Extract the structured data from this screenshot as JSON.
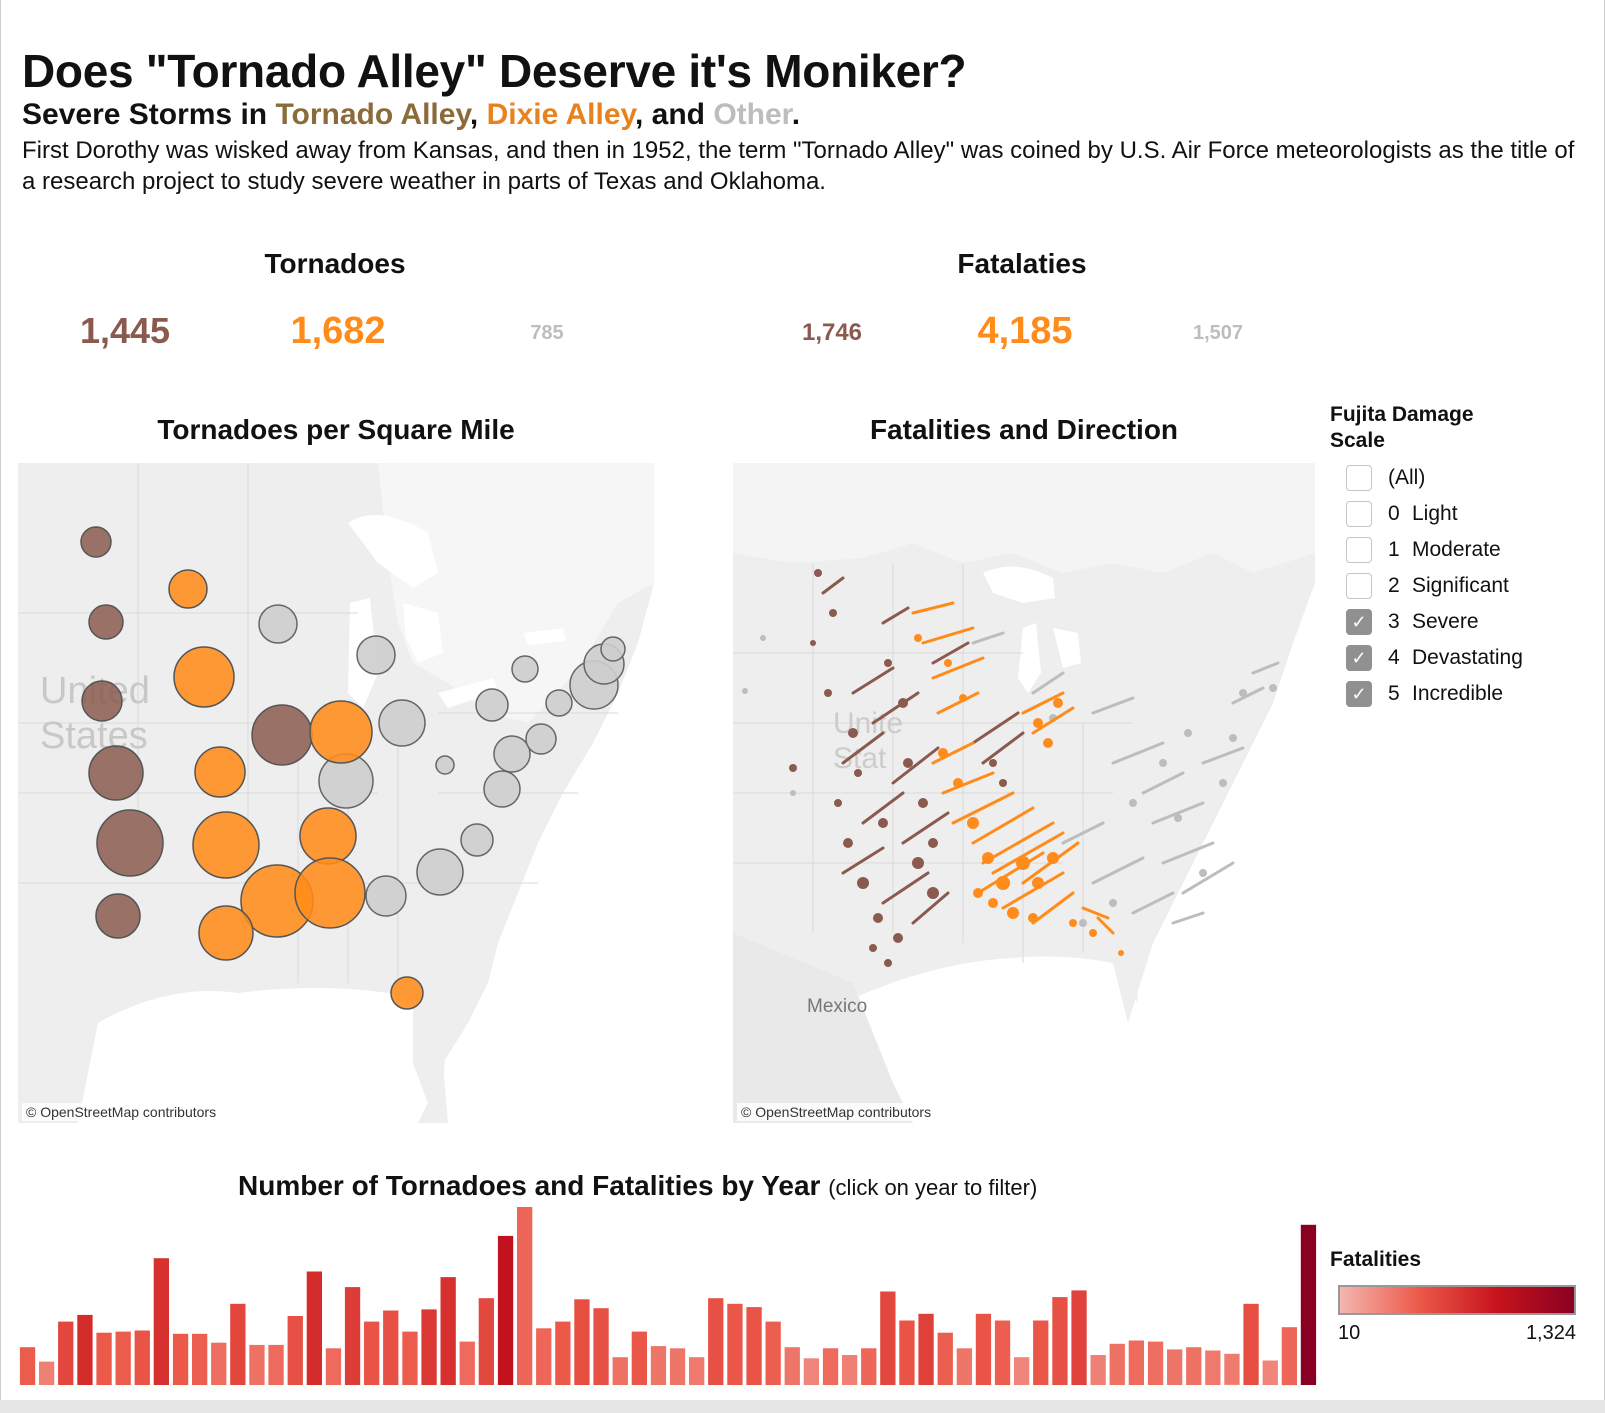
{
  "header": {
    "title": "Does \"Tornado Alley\" Deserve it's Moniker?",
    "subtitle_prefix": "Severe Storms in ",
    "subtitle_region1": "Tornado Alley",
    "subtitle_sep1": ", ",
    "subtitle_region2": "Dixie Alley",
    "subtitle_sep2": ", and ",
    "subtitle_region3": "Other",
    "subtitle_end": ".",
    "intro": "First Dorothy was wisked away from Kansas, and then in 1952, the term \"Tornado Alley\" was coined by U.S. Air Force meteorologists as the title of a research project to study severe weather in parts of Texas and Oklahoma."
  },
  "colors": {
    "tornado_alley": "#8B5A4F",
    "dixie_alley": "#FF8C1A",
    "other": "#BFBFBF",
    "alley_title": "#8B6B3A",
    "dixie_title": "#E8821E"
  },
  "kpis": {
    "tornadoes": {
      "label": "Tornadoes",
      "tornado_alley": "1,445",
      "dixie_alley": "1,682",
      "other": "785"
    },
    "fatalities": {
      "label": "Fatalaties",
      "tornado_alley": "1,746",
      "dixie_alley": "4,185",
      "other": "1,507"
    }
  },
  "map_left": {
    "title": "Tornadoes per Square Mile",
    "country_label_1": "United",
    "country_label_2": "States",
    "credit": "© OpenStreetMap contributors"
  },
  "map_right": {
    "title": "Fatalities and Direction",
    "country_label_1": "Unite",
    "country_label_2": "Stat",
    "mexico_label": "Mexico",
    "credit": "© OpenStreetMap contributors"
  },
  "fujita_filter": {
    "title_line1": "Fujita Damage",
    "title_line2": "Scale",
    "items": [
      {
        "num": "",
        "label": "(All)",
        "checked": false
      },
      {
        "num": "0",
        "label": "Light",
        "checked": false
      },
      {
        "num": "1",
        "label": "Moderate",
        "checked": false
      },
      {
        "num": "2",
        "label": "Significant",
        "checked": false
      },
      {
        "num": "3",
        "label": "Severe",
        "checked": true
      },
      {
        "num": "4",
        "label": "Devastating",
        "checked": true
      },
      {
        "num": "5",
        "label": "Incredible",
        "checked": true
      }
    ]
  },
  "yearly": {
    "title": "Number of Tornadoes and Fatalities by Year",
    "hint": "(click on year to filter)",
    "legend_title": "Fatalities",
    "legend_min": "10",
    "legend_max": "1,324"
  },
  "chart_data": {
    "type": "bar",
    "title": "Number of Tornadoes and Fatalities by Year",
    "color_encoding": "Fatalities",
    "color_range": [
      10,
      1324
    ],
    "tornado_counts": [
      34,
      21,
      57,
      63,
      47,
      48,
      49,
      114,
      46,
      46,
      38,
      73,
      36,
      36,
      62,
      102,
      33,
      88,
      57,
      67,
      48,
      68,
      97,
      39,
      78,
      134,
      160,
      51,
      57,
      77,
      69,
      25,
      48,
      35,
      33,
      25,
      78,
      73,
      70,
      57,
      34,
      24,
      33,
      27,
      33,
      84,
      58,
      64,
      47,
      33,
      64,
      58,
      25,
      58,
      79,
      85,
      27,
      37,
      40,
      39,
      32,
      34,
      31,
      28,
      73,
      22,
      52,
      144
    ],
    "fatalities": [
      150,
      60,
      250,
      420,
      160,
      150,
      180,
      380,
      160,
      140,
      100,
      250,
      90,
      110,
      200,
      420,
      110,
      300,
      180,
      200,
      150,
      330,
      380,
      110,
      240,
      650,
      120,
      120,
      160,
      210,
      200,
      90,
      170,
      80,
      80,
      75,
      200,
      170,
      180,
      140,
      80,
      50,
      110,
      60,
      120,
      240,
      180,
      280,
      140,
      80,
      180,
      140,
      50,
      170,
      200,
      270,
      60,
      90,
      110,
      100,
      80,
      90,
      75,
      70,
      210,
      50,
      120,
      1324
    ]
  }
}
